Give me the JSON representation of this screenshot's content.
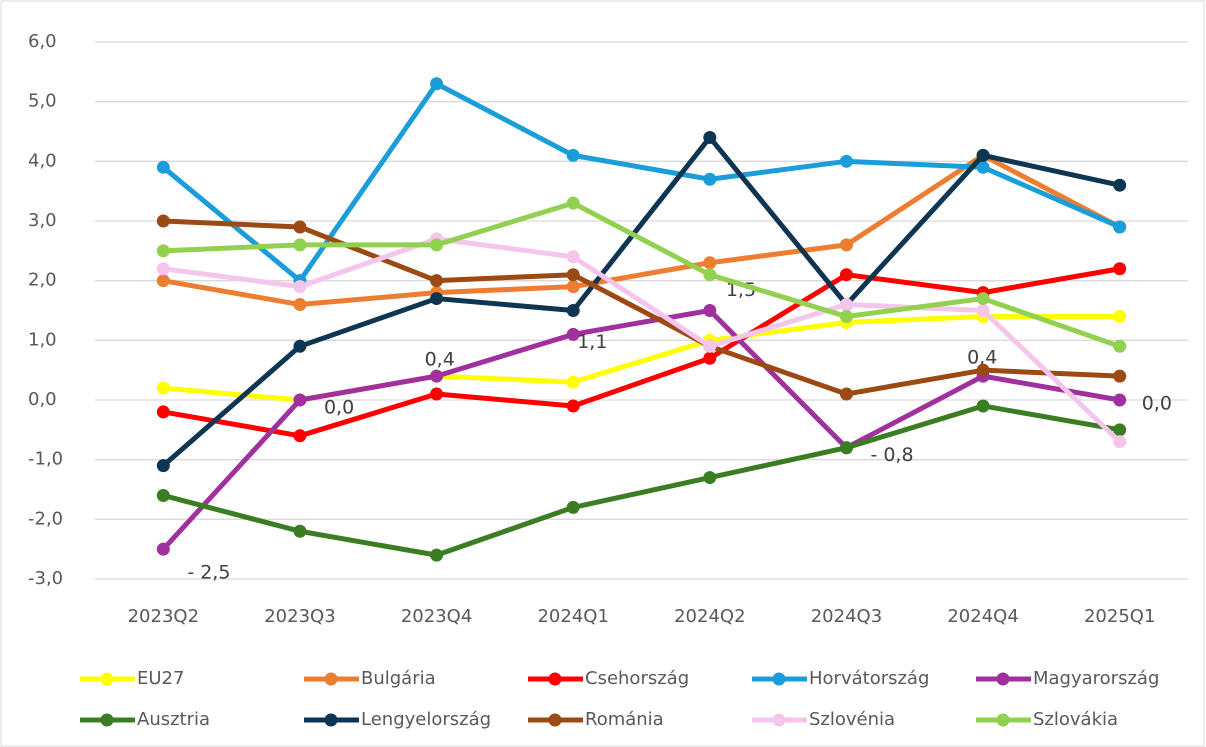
{
  "chart_data": {
    "type": "line",
    "categories": [
      "2023Q2",
      "2023Q3",
      "2023Q4",
      "2024Q1",
      "2024Q2",
      "2024Q3",
      "2024Q4",
      "2025Q1"
    ],
    "ylim": [
      -3,
      6
    ],
    "yticks": [
      {
        "value": -3,
        "label": "-3,0"
      },
      {
        "value": -2,
        "label": "-2,0"
      },
      {
        "value": -1,
        "label": "-1,0"
      },
      {
        "value": 0,
        "label": "0,0"
      },
      {
        "value": 1,
        "label": "1,0"
      },
      {
        "value": 2,
        "label": "2,0"
      },
      {
        "value": 3,
        "label": "3,0"
      },
      {
        "value": 4,
        "label": "4,0"
      },
      {
        "value": 5,
        "label": "5,0"
      },
      {
        "value": 6,
        "label": "6,0"
      }
    ],
    "grid": true,
    "legend": "bottom",
    "series": [
      {
        "name": "EU27",
        "color": "#ffff00",
        "values": [
          0.2,
          0.0,
          0.4,
          0.3,
          1.0,
          1.3,
          1.4,
          1.4
        ]
      },
      {
        "name": "Bulgária",
        "color": "#ed7d31",
        "values": [
          2.0,
          1.6,
          1.8,
          1.9,
          2.3,
          2.6,
          4.1,
          2.9
        ]
      },
      {
        "name": "Csehország",
        "color": "#ff0000",
        "values": [
          -0.2,
          -0.6,
          0.1,
          -0.1,
          0.7,
          2.1,
          1.8,
          2.2
        ]
      },
      {
        "name": "Horvátország",
        "color": "#1a9dd9",
        "values": [
          3.9,
          2.0,
          5.3,
          4.1,
          3.7,
          4.0,
          3.9,
          2.9
        ]
      },
      {
        "name": "Magyarország",
        "color": "#a0309e",
        "values": [
          -2.5,
          0.0,
          0.4,
          1.1,
          1.5,
          -0.8,
          0.4,
          0.0
        ],
        "value_labels": [
          "- 2,5",
          "0,0",
          "0,4",
          "1,1",
          "1,5",
          "- 0,8",
          "0,4",
          "0,0"
        ]
      },
      {
        "name": "Ausztria",
        "color": "#3a7d22",
        "values": [
          -1.6,
          -2.2,
          -2.6,
          -1.8,
          -1.3,
          -0.8,
          -0.1,
          -0.5
        ]
      },
      {
        "name": "Lengyelország",
        "color": "#0e3552",
        "values": [
          -1.1,
          0.9,
          1.7,
          1.5,
          4.4,
          1.6,
          4.1,
          3.6
        ]
      },
      {
        "name": "Románia",
        "color": "#9c4a14",
        "values": [
          3.0,
          2.9,
          2.0,
          2.1,
          0.9,
          0.1,
          0.5,
          0.4
        ]
      },
      {
        "name": "Szlovénia",
        "color": "#f4c6ec",
        "values": [
          2.2,
          1.9,
          2.7,
          2.4,
          0.9,
          1.6,
          1.5,
          -0.7
        ]
      },
      {
        "name": "Szlovákia",
        "color": "#92d050",
        "values": [
          2.5,
          2.6,
          2.6,
          3.3,
          2.1,
          1.4,
          1.7,
          0.9
        ]
      }
    ]
  }
}
